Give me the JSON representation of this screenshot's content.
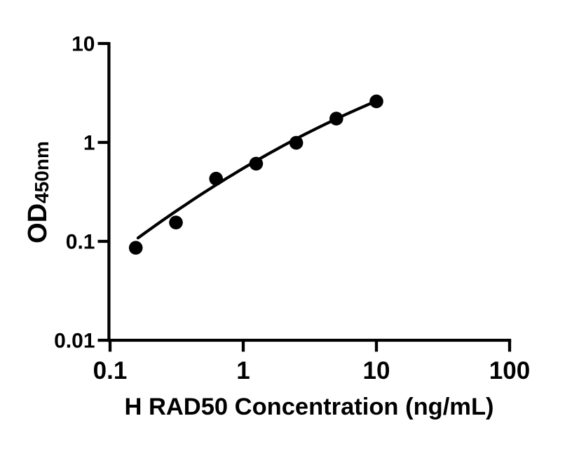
{
  "figure": {
    "kind": "ELISA standard curve plot",
    "background_color": "#ffffff",
    "foreground_color": "#000000"
  },
  "chart_data": {
    "type": "scatter",
    "title": "",
    "xlabel": "H RAD50 Concentration (ng/mL)",
    "ylabel_main": "OD",
    "ylabel_sub": "450nm",
    "x_scale": "log",
    "y_scale": "log",
    "xlim": [
      0.1,
      100
    ],
    "ylim": [
      0.01,
      10
    ],
    "x_tick_values": [
      0.1,
      1,
      10,
      100
    ],
    "x_tick_labels": [
      "0.1",
      "1",
      "10",
      "100"
    ],
    "y_tick_values": [
      10,
      1,
      0.1,
      0.01
    ],
    "y_tick_labels": [
      "10",
      "1",
      "0.1",
      "0.01"
    ],
    "grid": false,
    "legend": false,
    "marker": {
      "shape": "circle",
      "color": "#000000",
      "radius_px": 9.8
    },
    "line_color": "#000000",
    "axis_color": "#000000",
    "series": [
      {
        "name": "standard-points",
        "type": "scatter",
        "x": [
          0.156,
          0.3125,
          0.625,
          1.25,
          2.5,
          5,
          10
        ],
        "y": [
          0.086,
          0.155,
          0.43,
          0.61,
          0.99,
          1.74,
          2.6
        ]
      },
      {
        "name": "fitted-curve",
        "type": "line",
        "fit": {
          "space": "log10(x)-log10(y)",
          "model": "v = a*u^2 + b*u + c",
          "a": -0.118,
          "b": 0.798,
          "c": -0.262,
          "u_min": -0.79,
          "u_max": 1.0
        }
      }
    ]
  }
}
